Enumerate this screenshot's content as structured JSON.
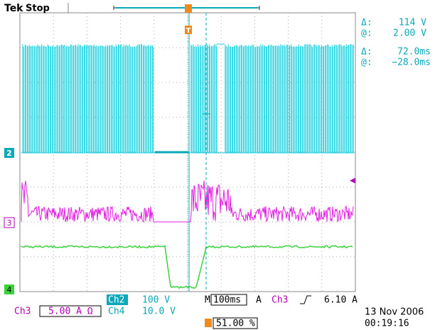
{
  "header": {
    "brand": "Tek",
    "status": "Stop"
  },
  "readouts": [
    {
      "symbol": "Δ:",
      "value": "114 V"
    },
    {
      "symbol": "@:",
      "value": "2.00 V"
    },
    {
      "symbol": "Δ:",
      "value": "72.0ms"
    },
    {
      "symbol": "@:",
      "value": "−28.0ms"
    }
  ],
  "channel_markers": [
    "2",
    "3",
    "4"
  ],
  "trigger_marker": "T",
  "status_bar": {
    "ch2_label": "Ch2",
    "ch2_scale": "100 V",
    "timebase_label": "M",
    "timebase": "100ms",
    "trigger_source_label": "A",
    "trigger_channel": "Ch3",
    "trigger_level": "6.10 A",
    "ch3_label": "Ch3",
    "ch3_scale": "5.00 A Ω",
    "ch4_label": "Ch4",
    "ch4_scale": "10.0 V",
    "trigger_position": "51.00 %",
    "date": "13 Nov 2006",
    "time": "00:19:16"
  }
}
